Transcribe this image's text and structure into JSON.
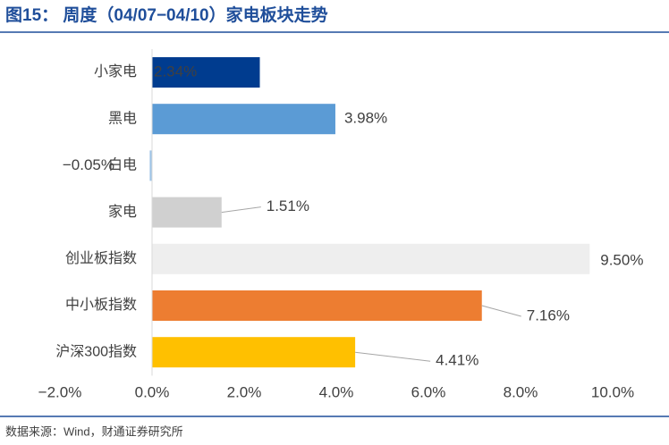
{
  "chart_data": {
    "type": "hbar",
    "title": "图15：  周度（04/07−04/10）家电板块走势",
    "source": "数据来源：Wind，财通证券研究所",
    "categories": [
      "小家电",
      "黑电",
      "白电",
      "家电",
      "创业板指数",
      "中小板指数",
      "沪深300指数"
    ],
    "values": [
      2.34,
      3.98,
      -0.05,
      1.51,
      9.5,
      7.16,
      4.41
    ],
    "value_labels": [
      "2.34%",
      "3.98%",
      "−0.05%",
      "1.51%",
      "9.50%",
      "7.16%",
      "4.41%"
    ],
    "colors": [
      "#003c8f",
      "#5b9bd5",
      "#9dc3e6",
      "#d0d0d0",
      "#eeeeee",
      "#ed7d31",
      "#ffc000"
    ],
    "xlim": [
      -2,
      10
    ],
    "xticks": [
      {
        "value": -2,
        "label": "−2.0%"
      },
      {
        "value": 0,
        "label": "0.0%"
      },
      {
        "value": 2,
        "label": "2.0%"
      },
      {
        "value": 4,
        "label": "4.0%"
      },
      {
        "value": 6,
        "label": "6.0%"
      },
      {
        "value": 8,
        "label": "8.0%"
      },
      {
        "value": 10,
        "label": "10.0%"
      }
    ]
  }
}
